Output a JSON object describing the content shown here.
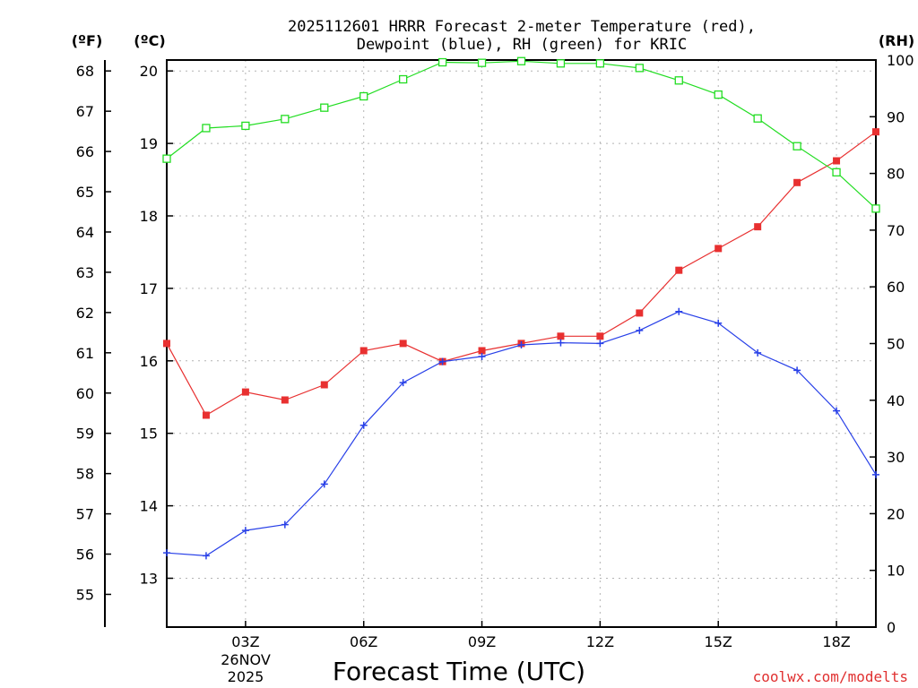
{
  "chart_data": {
    "type": "line",
    "title_line1": "2025112601 HRRR Forecast 2-meter Temperature (red),",
    "title_line2": "Dewpoint (blue), RH (green) for KRIC",
    "xlabel": "Forecast Time (UTC)",
    "credit": "coolwx.com/modelts",
    "units": {
      "fahrenheit": "(ºF)",
      "celsius": "(ºC)",
      "rh": "(RH)"
    },
    "date_label_1": "26NOV",
    "date_label_2": "2025",
    "x": [
      1,
      2,
      3,
      4,
      5,
      6,
      7,
      8,
      9,
      10,
      11,
      12,
      13,
      14,
      15,
      16,
      17,
      18,
      19
    ],
    "xlim": [
      1,
      19
    ],
    "x_ticks": [
      {
        "x": 3,
        "label": "03Z"
      },
      {
        "x": 6,
        "label": "06Z"
      },
      {
        "x": 9,
        "label": "09Z"
      },
      {
        "x": 12,
        "label": "12Z"
      },
      {
        "x": 15,
        "label": "15Z"
      },
      {
        "x": 18,
        "label": "18Z"
      }
    ],
    "ylim_celsius": [
      12.3,
      20.15
    ],
    "celsius_ticks": [
      13,
      14,
      15,
      16,
      17,
      18,
      19,
      20
    ],
    "fahrenheit_ticks": [
      55,
      56,
      57,
      58,
      59,
      60,
      61,
      62,
      63,
      64,
      65,
      66,
      67,
      68
    ],
    "rh_ticks": [
      0,
      10,
      20,
      30,
      40,
      50,
      60,
      70,
      80,
      90,
      100
    ],
    "ylim_rh": [
      0,
      100
    ],
    "series": [
      {
        "name": "Temperature",
        "unit": "C",
        "color": "#e83030",
        "marker": "square-filled",
        "values": [
          16.24,
          15.25,
          15.57,
          15.46,
          15.67,
          16.14,
          16.24,
          15.99,
          16.14,
          16.24,
          16.34,
          16.34,
          16.66,
          17.25,
          17.55,
          17.85,
          18.46,
          18.76,
          19.16
        ]
      },
      {
        "name": "Dewpoint",
        "unit": "C",
        "color": "#2840e8",
        "marker": "plus",
        "values": [
          13.35,
          13.31,
          13.66,
          13.74,
          14.3,
          15.11,
          15.7,
          15.99,
          16.06,
          16.22,
          16.25,
          16.24,
          16.42,
          16.68,
          16.52,
          16.11,
          15.87,
          15.31,
          14.43
        ]
      },
      {
        "name": "RH",
        "unit": "%",
        "color": "#22dd22",
        "marker": "square-open",
        "values": [
          82.6,
          88.0,
          88.4,
          89.6,
          91.6,
          93.6,
          96.6,
          99.6,
          99.5,
          99.8,
          99.4,
          99.4,
          98.6,
          96.4,
          93.9,
          89.7,
          84.8,
          80.2,
          73.8
        ]
      }
    ]
  }
}
